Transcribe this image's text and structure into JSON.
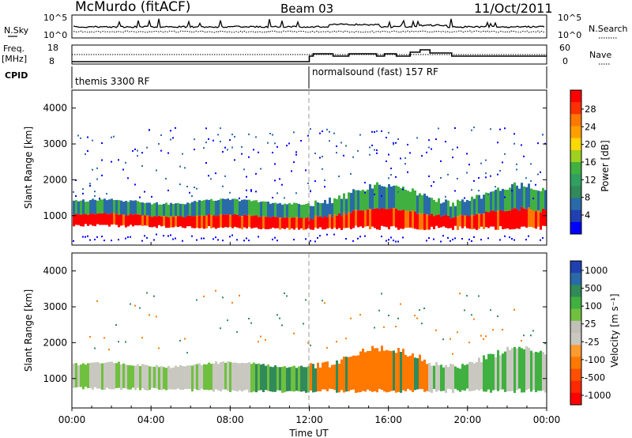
{
  "header": {
    "station": "McMurdo (fitACF)",
    "beam": "Beam 03",
    "date": "11/Oct/2011"
  },
  "top_panel": {
    "left_label": "N.Sky",
    "right_label": "N.Search",
    "left_ticks": [
      "10^5",
      "10^0"
    ],
    "right_ticks": [
      "10^5",
      "10^0"
    ]
  },
  "freq_panel": {
    "left_label_1": "Freq.",
    "left_label_2": "[MHz]",
    "left_ticks": [
      "18",
      "8"
    ],
    "right_label": "Nave",
    "right_ticks": [
      "60",
      "0"
    ]
  },
  "cpid_panel": {
    "label": "CPID",
    "modes": [
      {
        "name": "themis 3300 RF",
        "start_hour": 0
      },
      {
        "name": "normalsound (fast) 157 RF",
        "start_hour": 12
      }
    ]
  },
  "x_axis": {
    "ticks": [
      "00:00",
      "04:00",
      "08:00",
      "12:00",
      "16:00",
      "20:00",
      "00:00"
    ],
    "label": "Time UT"
  },
  "power_panel": {
    "ylabel": "Slant Range [km]",
    "yticks": [
      "1000",
      "2000",
      "3000",
      "4000"
    ],
    "colorbar_label": "Power [dB]",
    "colorbar_ticks": [
      "28",
      "24",
      "20",
      "16",
      "12",
      "8",
      "4"
    ],
    "colorbar_colors": [
      "#ff0000",
      "#ff3000",
      "#ff7800",
      "#ffa000",
      "#ffd800",
      "#a0d020",
      "#40b040",
      "#30a060",
      "#308a5a",
      "#2a6aa8",
      "#2040b0",
      "#0000ff"
    ]
  },
  "velocity_panel": {
    "ylabel": "Slant Range [km]",
    "yticks": [
      "1000",
      "2000",
      "3000",
      "4000"
    ],
    "colorbar_label": "Velocity [m s⁻¹]",
    "colorbar_ticks": [
      "1000",
      "500",
      "100",
      "25",
      "-25",
      "-100",
      "-500",
      "-1000"
    ],
    "colorbar_colors": [
      "#2040b0",
      "#2a6aa8",
      "#308a5a",
      "#40b040",
      "#70c040",
      "#c0c0b8",
      "#c8c8c0",
      "#ff9a30",
      "#ff7800",
      "#ff5000",
      "#ff2800",
      "#ff0000"
    ]
  },
  "chart_data": [
    {
      "type": "heatmap",
      "title": "Power",
      "x_range_hours": [
        0,
        24
      ],
      "y_range_km": [
        180,
        4500
      ],
      "bands": [
        {
          "t": [
            0,
            12
          ],
          "r_bottom": [
            650,
            850
          ],
          "r_top": [
            1050,
            1100
          ],
          "value": "28"
        },
        {
          "t": [
            0,
            12
          ],
          "r_bottom": [
            1100,
            1150
          ],
          "r_top": [
            1400,
            1450
          ],
          "value": "8"
        },
        {
          "t": [
            12,
            24
          ],
          "r_bottom": [
            600,
            700
          ],
          "r_top": [
            1000,
            1200
          ],
          "value": "28"
        },
        {
          "t": [
            12,
            24
          ],
          "r_bottom": [
            1200,
            1300
          ],
          "r_top": [
            1600,
            1900
          ],
          "value": "8"
        }
      ]
    },
    {
      "type": "heatmap",
      "title": "Velocity",
      "x_range_hours": [
        0,
        24
      ],
      "y_range_km": [
        180,
        4500
      ],
      "bands": [
        {
          "t": [
            0,
            9
          ],
          "r_bottom": [
            600,
            800
          ],
          "r_top": [
            1300,
            1400
          ],
          "value": "25"
        },
        {
          "t": [
            9,
            12
          ],
          "r_bottom": [
            500,
            700
          ],
          "r_top": [
            1300,
            1500
          ],
          "value": "100"
        },
        {
          "t": [
            12,
            18
          ],
          "r_bottom": [
            500,
            700
          ],
          "r_top": [
            1500,
            1800
          ],
          "value": "-100"
        },
        {
          "t": [
            18,
            24
          ],
          "r_bottom": [
            500,
            700
          ],
          "r_top": [
            1300,
            1800
          ],
          "value": "25"
        }
      ]
    }
  ]
}
